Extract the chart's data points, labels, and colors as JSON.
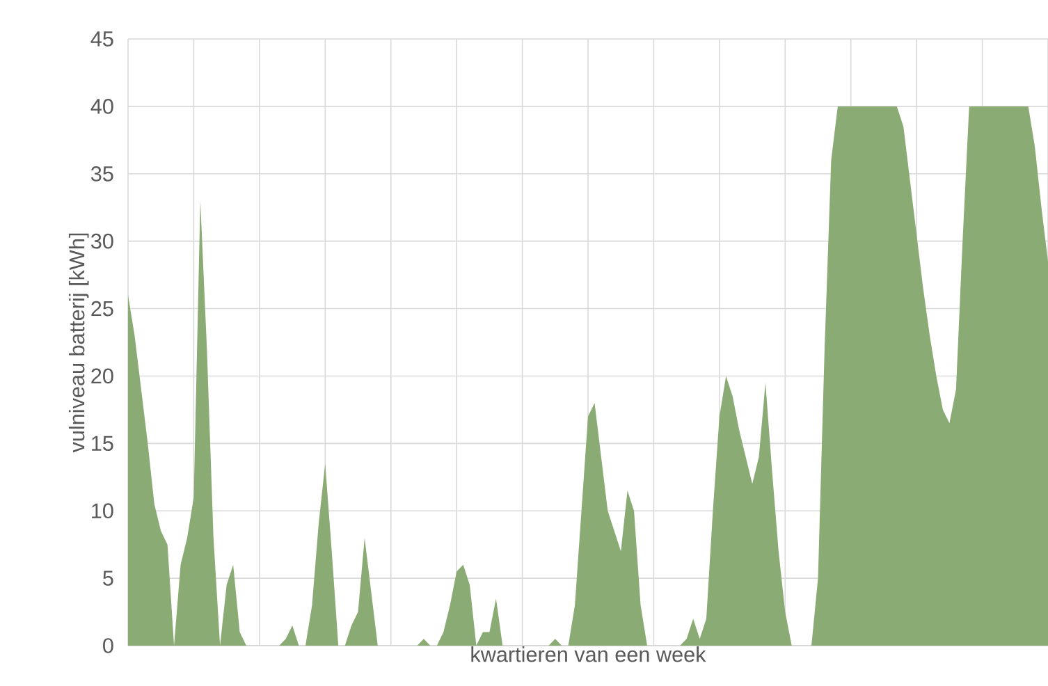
{
  "chart_data": {
    "type": "area",
    "xlabel": "kwartieren van een week",
    "ylabel": "vulniveau batterij [kWh]",
    "categories": [
      null,
      null,
      null,
      null,
      null,
      null,
      null,
      null,
      null,
      null,
      null,
      null,
      null,
      null,
      null,
      null,
      null,
      null,
      null,
      null,
      null,
      null,
      null,
      null,
      null,
      null,
      null,
      null,
      null,
      null,
      null,
      null,
      null,
      null,
      null,
      null,
      null,
      null,
      null,
      null,
      null,
      null,
      null,
      null,
      null,
      null,
      null,
      null,
      null,
      null,
      null,
      null,
      null,
      null,
      null,
      null,
      null,
      null,
      null,
      null,
      null,
      null,
      null,
      null,
      null,
      null,
      null,
      null,
      null,
      null,
      null,
      null,
      null,
      null,
      null,
      null,
      null,
      null,
      null,
      null,
      null,
      null,
      null,
      null,
      null,
      null,
      null,
      null,
      null,
      null,
      null,
      null,
      null,
      null,
      null,
      null,
      null,
      null,
      null,
      null,
      null,
      null,
      null,
      null,
      null,
      null,
      null,
      null,
      null,
      null,
      null,
      null,
      null,
      null,
      null,
      null,
      null,
      null,
      null,
      null,
      null,
      null,
      null,
      null,
      null,
      null,
      null,
      null,
      null,
      null,
      null,
      null,
      null,
      null,
      null,
      null,
      null,
      null,
      null,
      null,
      null
    ],
    "values": [
      26,
      23,
      19,
      15,
      10.5,
      8.5,
      7.5,
      0,
      6,
      8,
      11,
      33,
      22,
      8,
      0,
      4.5,
      6,
      1,
      0,
      0,
      0,
      0,
      0,
      0,
      0.5,
      1.5,
      0,
      0,
      3,
      9,
      13.5,
      7,
      0,
      0,
      1.5,
      2.5,
      8,
      4,
      0,
      0,
      0,
      0,
      0,
      0,
      0,
      0.5,
      0,
      0,
      1,
      3,
      5.5,
      6,
      4.5,
      0,
      1,
      1,
      3.5,
      0,
      0,
      0,
      0,
      0,
      0,
      0,
      0,
      0.5,
      0,
      0,
      3,
      10,
      17,
      18,
      14,
      10,
      8.5,
      7,
      11.5,
      10,
      3,
      0,
      0,
      0,
      0,
      0,
      0,
      0.5,
      2,
      0.5,
      2,
      10,
      17,
      20,
      18.5,
      16,
      14,
      12,
      14,
      19.5,
      13,
      7,
      2.5,
      0,
      0,
      0,
      0,
      5,
      22,
      36,
      40,
      40,
      40,
      40,
      40,
      40,
      40,
      40,
      40,
      40,
      38.5,
      34.5,
      30.5,
      26.5,
      23,
      20,
      17.5,
      16.5,
      19,
      30,
      40,
      40,
      40,
      40,
      40,
      40,
      40,
      40,
      40,
      40,
      37,
      32.5,
      28.5
    ],
    "color": "#8aab74",
    "ylim": [
      0,
      45
    ],
    "yticks": [
      0,
      5,
      10,
      15,
      20,
      25,
      30,
      35,
      40,
      45
    ],
    "grid": true
  }
}
